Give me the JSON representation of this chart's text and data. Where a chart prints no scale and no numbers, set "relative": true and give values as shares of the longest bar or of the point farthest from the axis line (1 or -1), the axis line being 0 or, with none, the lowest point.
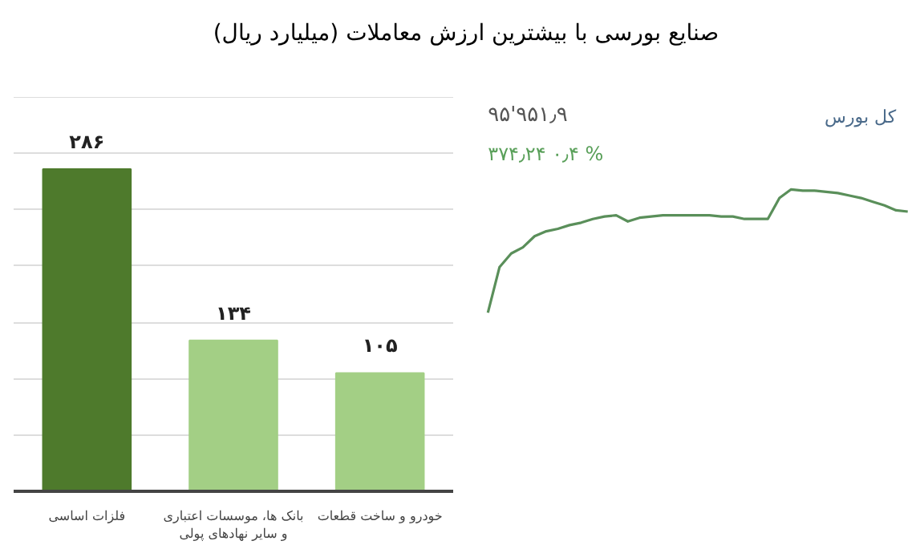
{
  "chart_data": [
    {
      "type": "bar",
      "title": "صنایع بورسی با بیشترین ارزش معاملات  (میلیارد ریال)",
      "categories": [
        "فلزات اساسی",
        "بانک ها، موسسات اعتباری\nو سایر نهادهای پولی",
        "خودرو و ساخت قطعات"
      ],
      "values": [
        286,
        134,
        105
      ],
      "colors": [
        "#4e7a2c",
        "#a3cf85",
        "#a3cf85"
      ],
      "value_labels": [
        "۲۸۶",
        "۱۳۴",
        "۱۰۵"
      ],
      "ylim": [
        0,
        350
      ],
      "yticks": [
        {
          "value": 0,
          "label": null
        },
        {
          "value": 50,
          "label": null
        },
        {
          "value": 100,
          "label": null
        },
        {
          "value": 150,
          "label": null
        },
        {
          "value": 200,
          "label": null
        },
        {
          "value": 250,
          "label": null
        },
        {
          "value": 300,
          "label": null
        },
        {
          "value": 350,
          "label": null
        }
      ],
      "grid": "y",
      "tick_labels": "x"
    },
    {
      "type": "line",
      "relative": true,
      "categories": [
        null,
        null,
        null,
        null,
        null,
        null,
        null,
        null,
        null,
        null,
        null,
        null,
        null,
        null,
        null,
        null,
        null,
        null,
        null,
        null,
        null,
        null,
        null,
        null,
        null,
        null,
        null,
        null,
        null,
        null,
        null,
        null,
        null,
        null,
        null,
        null,
        null
      ],
      "series": [
        {
          "color": "#5a8f5a",
          "values": [
            0,
            0.37,
            0.48,
            0.53,
            0.62,
            0.66,
            0.68,
            0.71,
            0.73,
            0.76,
            0.78,
            0.79,
            0.74,
            0.77,
            0.78,
            0.79,
            0.79,
            0.79,
            0.79,
            0.79,
            0.78,
            0.78,
            0.76,
            0.76,
            0.76,
            0.93,
            1.0,
            0.99,
            0.99,
            0.98,
            0.97,
            0.95,
            0.93,
            0.9,
            0.87,
            0.83,
            0.82
          ]
        }
      ],
      "annotations": [
        "کل بورس",
        "۹۵'۹۵۱٫۹",
        "۳۷۴٫۲۴   ۰٫۴ %"
      ],
      "tick_labels": false,
      "grid": false,
      "marker": "none",
      "line_style": "solid"
    }
  ]
}
